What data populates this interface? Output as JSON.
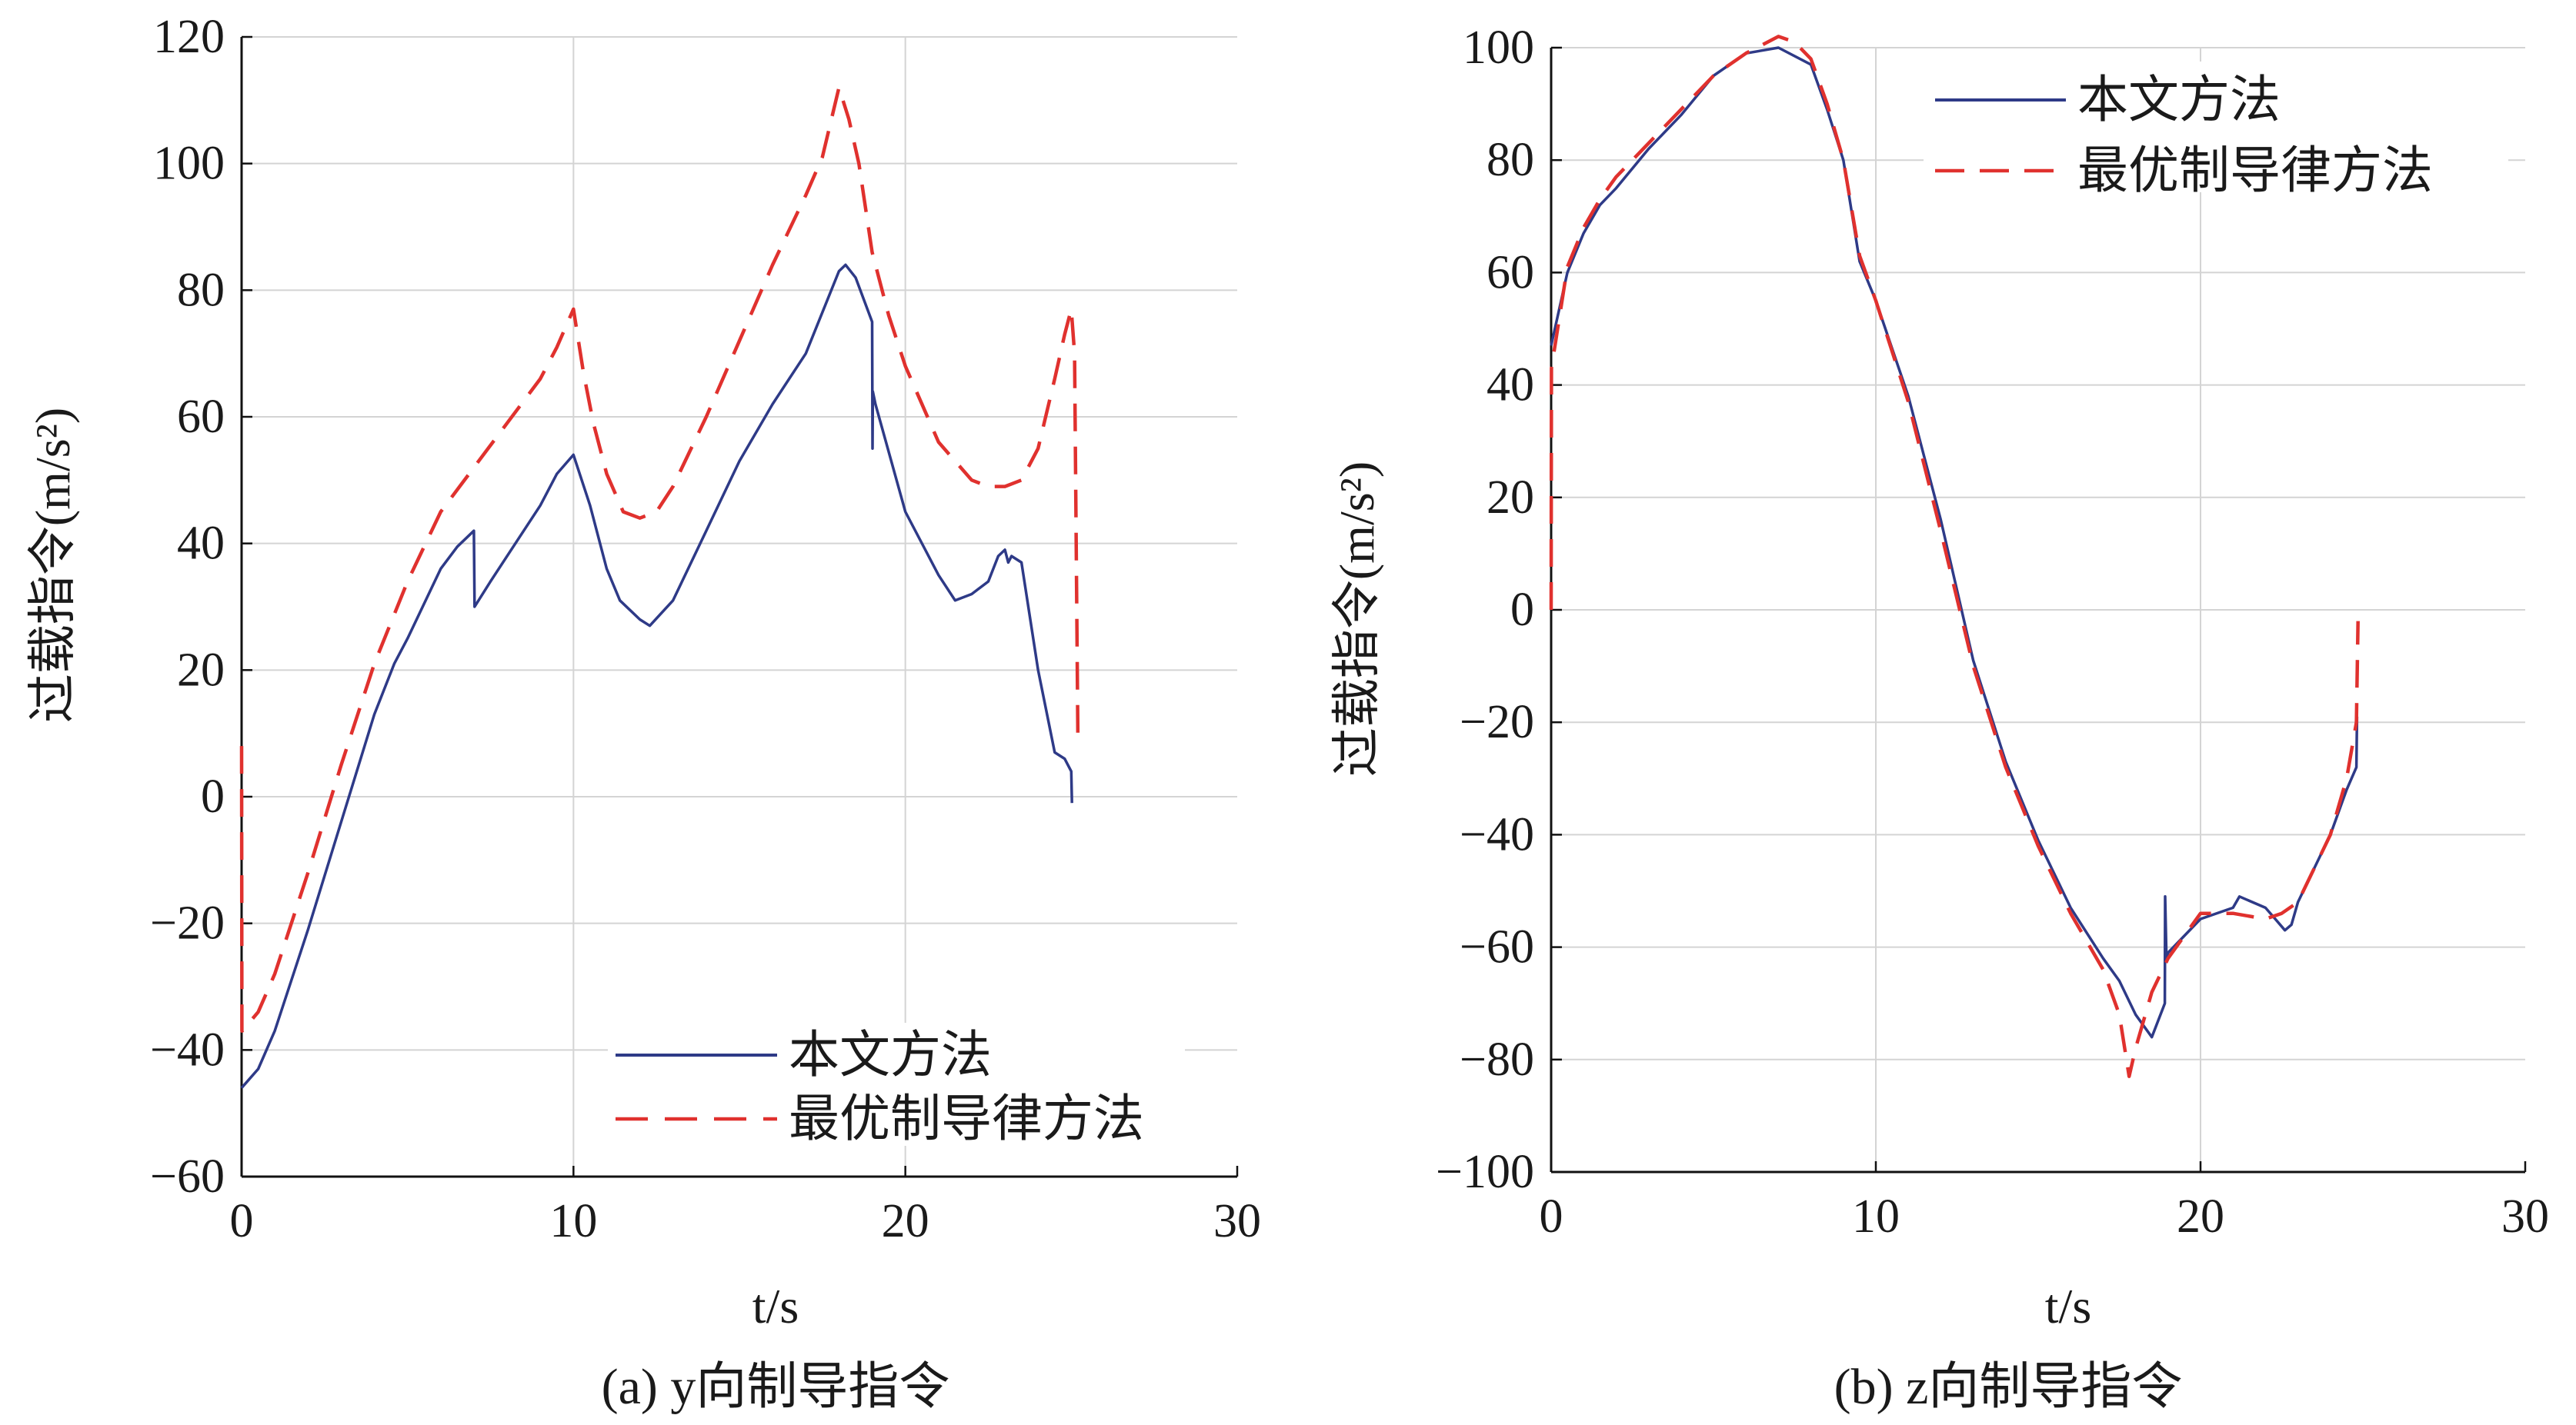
{
  "chart_data": [
    {
      "type": "line",
      "xlabel": "t/s",
      "ylabel": "过载指令(m/s²)",
      "caption": "(a) y向制导指令",
      "xlim": [
        0,
        30
      ],
      "ylim": [
        -60,
        120
      ],
      "xticks": [
        "0",
        "10",
        "20",
        "30"
      ],
      "yticks": [
        "−60",
        "−40",
        "−20",
        "0",
        "20",
        "40",
        "60",
        "80",
        "100",
        "120"
      ],
      "grid": true,
      "legend_position": "bottom-right",
      "series": [
        {
          "name": "本文方法",
          "color": "#2e3a87",
          "dash": "solid",
          "x": [
            0,
            0.5,
            1,
            2,
            3,
            4,
            4.6,
            5,
            6,
            6.5,
            7,
            7.02,
            7.5,
            8,
            9,
            9.5,
            10,
            10.5,
            11,
            11.4,
            12,
            12.3,
            13,
            14,
            15,
            16,
            17,
            18,
            18.2,
            18.5,
            19,
            19.01,
            19.02,
            19.1,
            20,
            21,
            21.5,
            22,
            22.5,
            22.8,
            23,
            23.1,
            23.2,
            23.5,
            24,
            24.5,
            24.8,
            25,
            25.02
          ],
          "y": [
            -46,
            -43,
            -37,
            -21,
            -4,
            13,
            21,
            25,
            36,
            39.5,
            42,
            30,
            34,
            38,
            46,
            51,
            54,
            46,
            36,
            31,
            28,
            27,
            31,
            42,
            53,
            62,
            70,
            83,
            84,
            82,
            75,
            55,
            64,
            62,
            45,
            35,
            31,
            32,
            34,
            38,
            39,
            37,
            38,
            37,
            20,
            7,
            6,
            4,
            -1
          ]
        },
        {
          "name": "最优制导律方法",
          "color": "#e0312e",
          "dash": "dashed",
          "x": [
            0,
            0.01,
            0.02,
            0.5,
            1,
            2,
            3,
            4,
            5,
            6,
            7,
            8,
            9,
            9.5,
            10,
            10.3,
            10.6,
            11,
            11.5,
            12,
            12.5,
            13,
            14,
            15,
            16,
            17,
            17.5,
            18,
            18.3,
            18.6,
            19,
            19.5,
            20,
            21,
            22,
            22.5,
            23,
            23.5,
            24,
            24.5,
            24.8,
            25,
            25.1,
            25.2
          ],
          "y": [
            8,
            -37,
            -37,
            -34,
            -28,
            -12,
            5,
            21,
            34,
            45,
            52,
            59,
            66,
            71,
            77,
            67,
            59,
            51,
            45,
            44,
            45,
            49,
            60,
            72,
            84,
            95,
            101,
            112,
            107,
            100,
            86,
            76,
            68,
            56,
            50,
            49,
            49,
            50,
            55,
            66,
            73,
            77,
            70,
            8
          ]
        }
      ]
    },
    {
      "type": "line",
      "xlabel": "t/s",
      "ylabel": "过载指令(m/s²)",
      "caption": "(b) z向制导指令",
      "xlim": [
        0,
        30
      ],
      "ylim": [
        -100,
        100
      ],
      "xticks": [
        "0",
        "10",
        "20",
        "30"
      ],
      "yticks": [
        "−100",
        "−80",
        "−60",
        "−40",
        "−20",
        "0",
        "20",
        "40",
        "60",
        "80",
        "100"
      ],
      "grid": true,
      "legend_position": "top-right",
      "series": [
        {
          "name": "本文方法",
          "color": "#2e3a87",
          "dash": "solid",
          "x": [
            0,
            0.5,
            1,
            1.5,
            2,
            3,
            4,
            5,
            6,
            7,
            8,
            8.5,
            9,
            9.5,
            10,
            11,
            12,
            13,
            14,
            15,
            16,
            17,
            17.5,
            18,
            18.5,
            18.9,
            18.91,
            18.95,
            19,
            20,
            21,
            21.2,
            22,
            22.3,
            22.6,
            22.8,
            23,
            24,
            24.5,
            24.8,
            24.82
          ],
          "y": [
            47,
            60,
            67,
            72,
            75,
            82,
            88,
            95,
            99,
            100,
            97,
            89,
            80,
            62,
            55,
            38,
            16,
            -9,
            -27,
            -41,
            -53,
            -62,
            -66,
            -72,
            -76,
            -70,
            -51,
            -62,
            -61,
            -55,
            -53,
            -51,
            -53,
            -55,
            -57,
            -56,
            -52,
            -40,
            -32,
            -28,
            -19
          ]
        },
        {
          "name": "最优制导律方法",
          "color": "#e0312e",
          "dash": "dashed",
          "x": [
            0,
            0.01,
            0.5,
            1,
            1.5,
            2,
            3,
            4,
            5,
            6,
            7,
            7.5,
            8,
            8.5,
            9,
            9.5,
            10,
            11,
            12,
            13,
            14,
            15,
            16,
            17,
            17.5,
            17.8,
            18,
            18.5,
            19,
            20,
            21,
            22,
            22.5,
            23,
            24,
            24.5,
            24.8,
            24.85
          ],
          "y": [
            0,
            43,
            61,
            68,
            73,
            77,
            83,
            89,
            95,
            99,
            102,
            101,
            98,
            90,
            80,
            63,
            55,
            37,
            14,
            -10,
            -28,
            -42,
            -54,
            -64,
            -72,
            -83,
            -78,
            -68,
            -62,
            -54,
            -54,
            -55,
            -54,
            -52,
            -40,
            -30,
            -20,
            -2
          ]
        }
      ]
    }
  ]
}
